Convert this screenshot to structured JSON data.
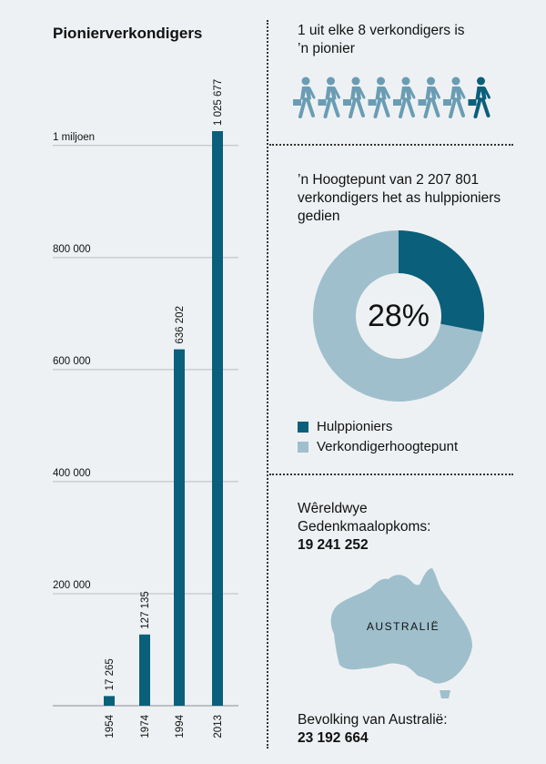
{
  "chart_data": [
    {
      "type": "bar",
      "title": "Pionierverkondigers",
      "categories": [
        "1954",
        "1974",
        "1994",
        "2013"
      ],
      "values": [
        17265,
        127135,
        636202,
        1025677
      ],
      "value_labels": [
        "17 265",
        "127 135",
        "636 202",
        "1 025 677"
      ],
      "ylim": [
        0,
        1050000
      ],
      "yticks": [
        200000,
        400000,
        600000,
        800000,
        1000000
      ],
      "ytick_labels": [
        "200 000",
        "400 000",
        "600 000",
        "800 000",
        "1 miljoen"
      ],
      "grid": true,
      "color": "#0a5f7b"
    },
    {
      "type": "pie",
      "title": "’n Hoogtepunt van 2 207 801 verkondigers het as hulppioniers gedien",
      "center_label": "28%",
      "slices": [
        {
          "name": "Hulppioniers",
          "value": 28,
          "color": "#0a5f7b"
        },
        {
          "name": "Verkondigerhoogtepunt",
          "value": 72,
          "color": "#9fbfcd"
        }
      ]
    }
  ],
  "pioneer_ratio": {
    "text": "1 uit elke 8 verkondigers is ’n pionier",
    "total_figures": 8,
    "highlighted_figures": 1,
    "figure_color": "#6a9db4",
    "highlight_color": "#0a5f7b",
    "icon": "walking-publisher-icon"
  },
  "memorial": {
    "label": "Wêreldwye Gedenkmaalopkoms:",
    "value": "19 241 252"
  },
  "australia": {
    "map_label": "AUSTRALIË",
    "population_label": "Bevolking van Australië:",
    "population_value": "23 192 664",
    "map_color": "#9fbfcd",
    "icon": "australia-map-icon"
  }
}
